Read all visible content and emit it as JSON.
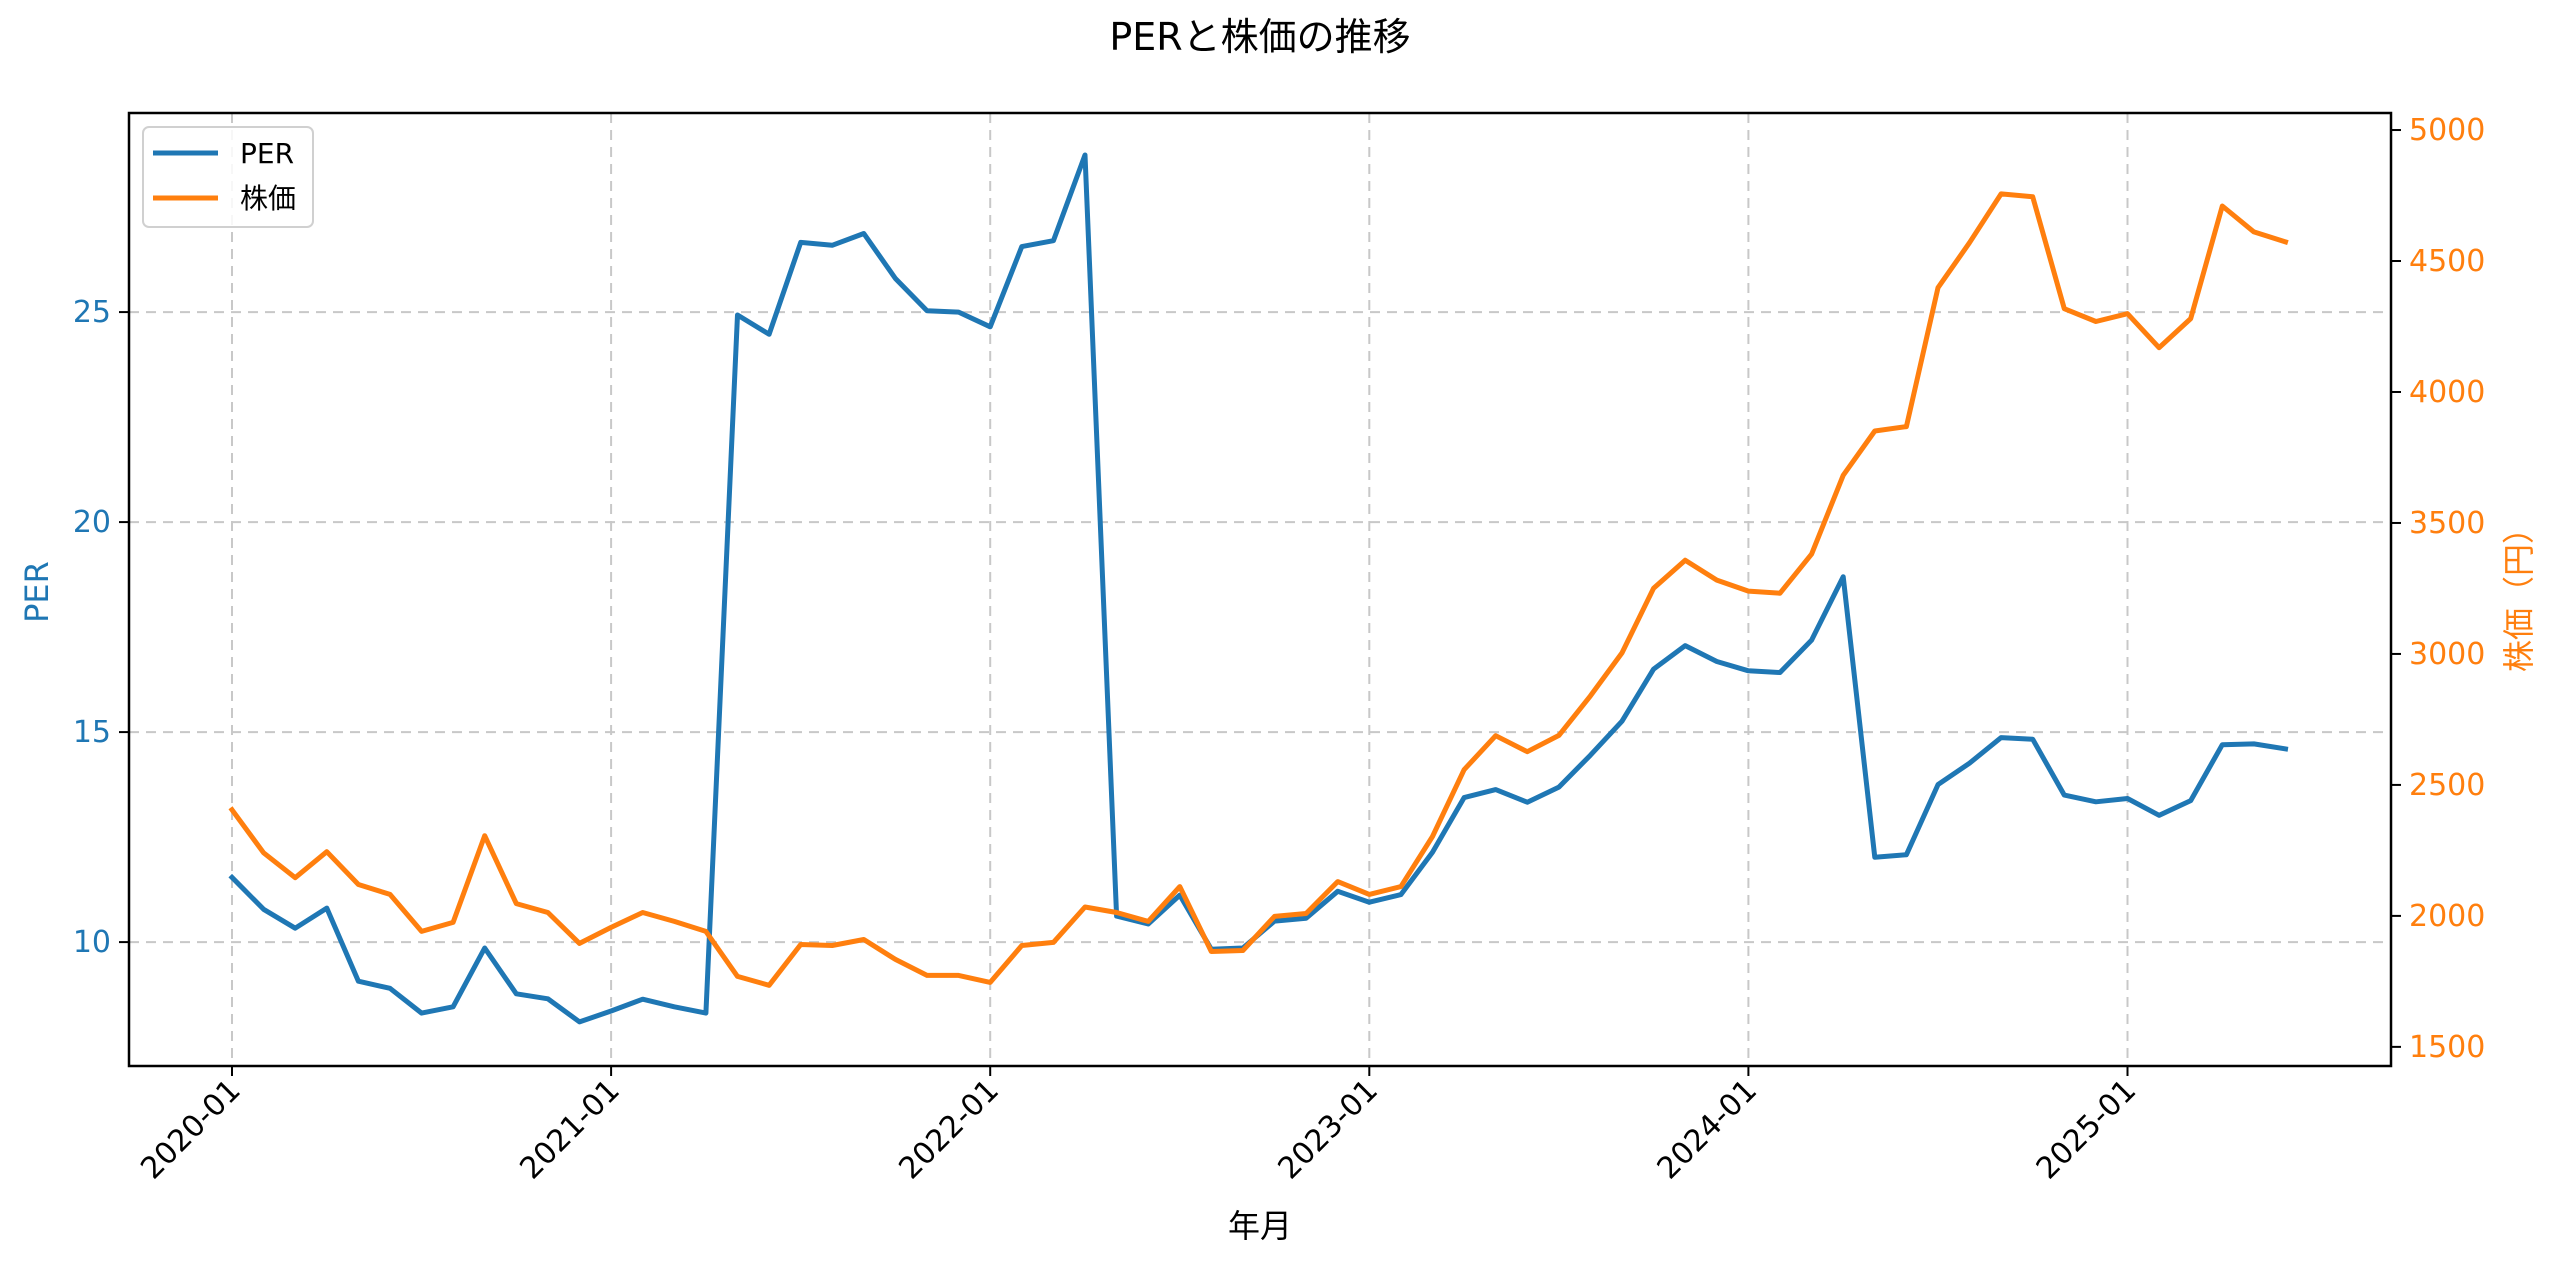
{
  "chart_data": {
    "type": "line",
    "title": "PERと株価の推移",
    "xlabel": "年月",
    "ylabel": "PER",
    "ylabel_right": "株価（円）",
    "x_tick_labels": [
      "2020-01",
      "2021-01",
      "2022-01",
      "2023-01",
      "2024-01",
      "2025-01"
    ],
    "y_ticks_left": [
      10,
      15,
      20,
      25
    ],
    "y_ticks_right": [
      1500,
      2000,
      2500,
      3000,
      3500,
      4000,
      4500,
      5000
    ],
    "ylim_left": [
      7.05,
      29.74
    ],
    "ylim_right": [
      1427,
      5065
    ],
    "grid": true,
    "legend_position": "upper left",
    "x": [
      "2020-01",
      "2020-02",
      "2020-03",
      "2020-04",
      "2020-05",
      "2020-06",
      "2020-07",
      "2020-08",
      "2020-09",
      "2020-10",
      "2020-11",
      "2020-12",
      "2021-01",
      "2021-02",
      "2021-03",
      "2021-04",
      "2021-05",
      "2021-06",
      "2021-07",
      "2021-08",
      "2021-09",
      "2021-10",
      "2021-11",
      "2021-12",
      "2022-01",
      "2022-02",
      "2022-03",
      "2022-04",
      "2022-05",
      "2022-06",
      "2022-07",
      "2022-08",
      "2022-09",
      "2022-10",
      "2022-11",
      "2022-12",
      "2023-01",
      "2023-02",
      "2023-03",
      "2023-04",
      "2023-05",
      "2023-06",
      "2023-07",
      "2023-08",
      "2023-09",
      "2023-10",
      "2023-11",
      "2023-12",
      "2024-01",
      "2024-02",
      "2024-03",
      "2024-04",
      "2024-05",
      "2024-06",
      "2024-07",
      "2024-08",
      "2024-09",
      "2024-10",
      "2024-11",
      "2024-12",
      "2025-01",
      "2025-02",
      "2025-03",
      "2025-04",
      "2025-05",
      "2025-06"
    ],
    "series": [
      {
        "name": "PER",
        "axis": "left",
        "color": "#1f77b4",
        "values": [
          11.54,
          10.78,
          10.33,
          10.81,
          9.07,
          8.9,
          8.31,
          8.46,
          9.86,
          8.77,
          8.65,
          8.1,
          8.36,
          8.64,
          8.46,
          8.31,
          24.93,
          24.47,
          26.66,
          26.59,
          26.87,
          25.8,
          25.03,
          25.0,
          24.65,
          26.56,
          26.7,
          28.74,
          10.62,
          10.43,
          11.12,
          9.83,
          9.86,
          10.5,
          10.57,
          11.21,
          10.95,
          11.13,
          12.14,
          13.44,
          13.63,
          13.33,
          13.69,
          14.45,
          15.26,
          16.5,
          17.06,
          16.68,
          16.46,
          16.42,
          17.19,
          18.7,
          12.02,
          12.08,
          13.75,
          14.26,
          14.87,
          14.83,
          13.5,
          13.34,
          13.42,
          13.02,
          13.37,
          14.7,
          14.72,
          14.6
        ]
      },
      {
        "name": "株価",
        "axis": "right",
        "color": "#ff7f0e",
        "values": [
          2405,
          2241,
          2146,
          2245,
          2120,
          2082,
          1941,
          1975,
          2306,
          2047,
          2013,
          1895,
          1956,
          2013,
          1979,
          1941,
          1769,
          1735,
          1891,
          1887,
          1910,
          1834,
          1773,
          1773,
          1746,
          1887,
          1899,
          2034,
          2013,
          1979,
          2112,
          1864,
          1868,
          1998,
          2009,
          2131,
          2082,
          2112,
          2303,
          2558,
          2688,
          2627,
          2689,
          2840,
          3004,
          3251,
          3358,
          3282,
          3240,
          3232,
          3381,
          3682,
          3851,
          3868,
          4398,
          4570,
          4756,
          4745,
          4318,
          4269,
          4299,
          4169,
          4280,
          4710,
          4611,
          4573
        ]
      }
    ]
  },
  "legend": {
    "items": [
      {
        "label": "PER",
        "color": "#1f77b4"
      },
      {
        "label": "株価",
        "color": "#ff7f0e"
      }
    ]
  },
  "colors": {
    "per": "#1f77b4",
    "price": "#ff7f0e",
    "grid": "#c8c8c8",
    "axis": "#000000"
  }
}
